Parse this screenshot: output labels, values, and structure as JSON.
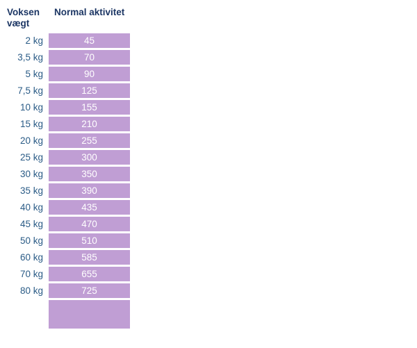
{
  "header": {
    "weight_col": "Voksen vægt",
    "activity_col": "Normal aktivitet"
  },
  "rows": [
    {
      "weight": "2 kg",
      "value": "45"
    },
    {
      "weight": "3,5 kg",
      "value": "70"
    },
    {
      "weight": "5 kg",
      "value": "90"
    },
    {
      "weight": "7,5 kg",
      "value": "125"
    },
    {
      "weight": "10 kg",
      "value": "155"
    },
    {
      "weight": "15 kg",
      "value": "210"
    },
    {
      "weight": "20 kg",
      "value": "255"
    },
    {
      "weight": "25 kg",
      "value": "300"
    },
    {
      "weight": "30 kg",
      "value": "350"
    },
    {
      "weight": "35 kg",
      "value": "390"
    },
    {
      "weight": "40 kg",
      "value": "435"
    },
    {
      "weight": "45 kg",
      "value": "470"
    },
    {
      "weight": "50 kg",
      "value": "510"
    },
    {
      "weight": "60 kg",
      "value": "585"
    },
    {
      "weight": "70 kg",
      "value": "655"
    },
    {
      "weight": "80 kg",
      "value": "725"
    }
  ],
  "trailing_empty_cell": "",
  "colors": {
    "header_text": "#1c3664",
    "weight_text": "#2a5b86",
    "cell_bg": "#c09ed4",
    "cell_text": "#ffffff",
    "background": "#ffffff"
  }
}
